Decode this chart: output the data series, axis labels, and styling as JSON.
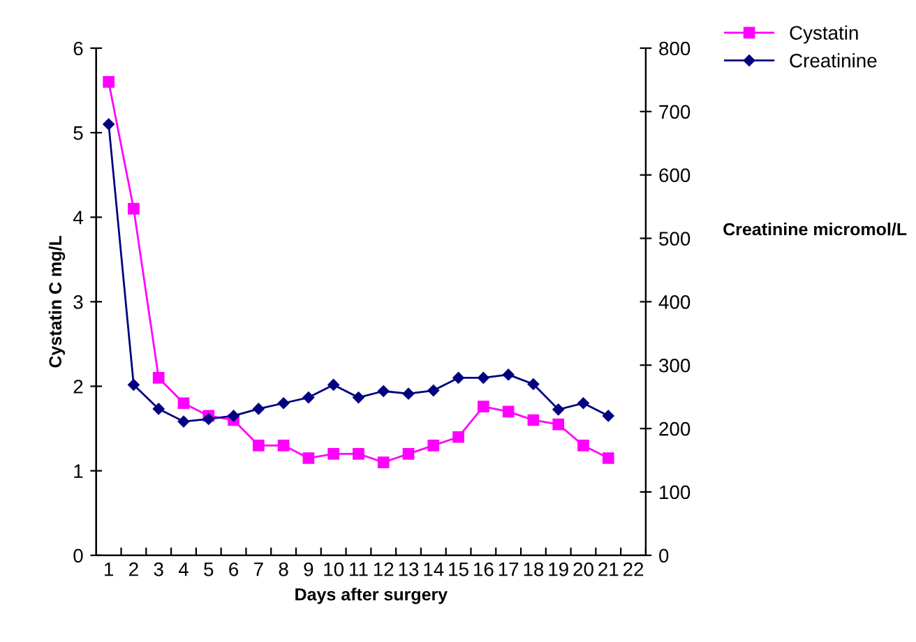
{
  "chart_data": {
    "type": "line",
    "xlabel": "Days after surgery",
    "ylabel": "Cystatin C mg/L",
    "y2label": "Creatinine micromol/L",
    "categories": [
      "1",
      "2",
      "3",
      "4",
      "5",
      "6",
      "7",
      "8",
      "9",
      "10",
      "11",
      "12",
      "13",
      "14",
      "15",
      "16",
      "17",
      "18",
      "19",
      "20",
      "21",
      "22"
    ],
    "series": [
      {
        "name": "Cystatin",
        "color": "#ff00ff",
        "marker": "square",
        "values": [
          5.6,
          4.1,
          2.1,
          1.8,
          1.65,
          1.6,
          1.3,
          1.3,
          1.15,
          1.2,
          1.2,
          1.1,
          1.2,
          1.3,
          1.4,
          1.76,
          1.7,
          1.6,
          1.55,
          1.3,
          1.15,
          null
        ]
      },
      {
        "name": "Creatinine",
        "color": "#000080",
        "marker": "diamond",
        "axis": "y2",
        "values": [
          680,
          269,
          231,
          211,
          215,
          220,
          231,
          240,
          249,
          269,
          249,
          259,
          255,
          260,
          280,
          280,
          285,
          270,
          230,
          240,
          220,
          null
        ]
      }
    ],
    "ylim": [
      0,
      6
    ],
    "yticks": [
      0,
      1,
      2,
      3,
      4,
      5,
      6
    ],
    "y2lim": [
      0,
      800
    ],
    "y2ticks": [
      0,
      100,
      200,
      300,
      400,
      500,
      600,
      700,
      800
    ],
    "grid": false,
    "legend": "top right",
    "line_style": "solid"
  }
}
